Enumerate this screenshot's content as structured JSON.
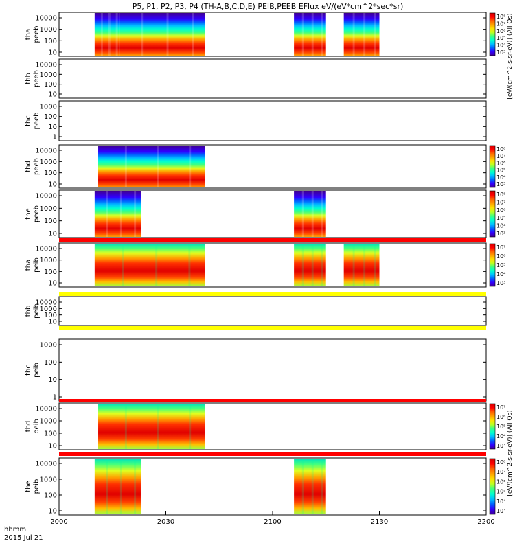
{
  "chart_data": {
    "type": "heatmap",
    "title": "P5, P1, P2, P3, P4 (TH-A,B,C,D,E) PEIB,PEEB EFlux eV/(eV*cm^2*sec*sr)",
    "x_axis": {
      "tick_labels": [
        "2000",
        "2030",
        "2100",
        "2130",
        "2200"
      ],
      "tick_minutes": [
        0,
        30,
        60,
        90,
        120
      ],
      "range_minutes": [
        0,
        120
      ],
      "corner_label_1": "hhmm",
      "corner_label_2": "2015 Jul 21"
    },
    "colorbar_label": "[eV/(cm^2-s-sr-eV)] (All Qs)",
    "panels": [
      {
        "probe": "tha",
        "instrument": "peeb",
        "ylabel": [
          "tha",
          "peeb"
        ],
        "yticks": [
          "10",
          "100",
          "1000",
          "10000"
        ],
        "has_data": true,
        "intervals_min": [
          [
            10,
            17
          ],
          [
            17,
            41
          ],
          [
            66,
            75
          ],
          [
            80,
            90
          ]
        ],
        "variant": "electron",
        "colorbar": true,
        "cbar_ticks": [
          "10⁸",
          "10⁷",
          "10⁶",
          "10⁵",
          "10⁴",
          "10³"
        ]
      },
      {
        "probe": "thb",
        "instrument": "peeb",
        "ylabel": [
          "thb",
          "peeb"
        ],
        "yticks": [
          "10",
          "100",
          "1000",
          "10000"
        ],
        "has_data": false,
        "intervals_min": [],
        "colorbar": false
      },
      {
        "probe": "thc",
        "instrument": "peeb",
        "ylabel": [
          "thc",
          "peeb"
        ],
        "yticks": [
          "1",
          "10",
          "100",
          "1000"
        ],
        "has_data": false,
        "intervals_min": [],
        "colorbar": false
      },
      {
        "probe": "thd",
        "instrument": "peeb",
        "ylabel": [
          "thd",
          "peeb"
        ],
        "yticks": [
          "10",
          "100",
          "1000",
          "10000"
        ],
        "has_data": true,
        "intervals_min": [
          [
            11,
            41
          ]
        ],
        "variant": "electron",
        "colorbar": true,
        "cbar_ticks": [
          "10⁸",
          "10⁷",
          "10⁶",
          "10⁵",
          "10⁴",
          "10³"
        ]
      },
      {
        "probe": "the",
        "instrument": "peeb",
        "ylabel": [
          "the",
          "peeb"
        ],
        "yticks": [
          "10",
          "100",
          "1000",
          "10000"
        ],
        "has_data": true,
        "intervals_min": [
          [
            10,
            23
          ],
          [
            66,
            75
          ]
        ],
        "variant": "electron",
        "colorbar": true,
        "cbar_ticks": [
          "10⁸",
          "10⁷",
          "10⁶",
          "10⁵",
          "10⁴",
          "10³"
        ]
      },
      {
        "probe": "tha",
        "instrument": "peib",
        "ylabel": [
          "tha",
          "peib"
        ],
        "yticks": [
          "10",
          "100",
          "1000",
          "10000"
        ],
        "has_data": true,
        "intervals_min": [
          [
            10,
            41
          ],
          [
            66,
            75
          ],
          [
            80,
            90
          ]
        ],
        "variant": "ion",
        "colorbar": true,
        "cbar_ticks": [
          "10⁷",
          "10⁶",
          "10⁵",
          "10⁴",
          "10³"
        ]
      },
      {
        "probe": "thb",
        "instrument": "peib",
        "ylabel": [
          "thb",
          "peib"
        ],
        "yticks": [
          "10",
          "100",
          "1000",
          "10000"
        ],
        "has_data": false,
        "intervals_min": [],
        "colorbar": false
      },
      {
        "probe": "thc",
        "instrument": "peib",
        "ylabel": [
          "thc",
          "peib"
        ],
        "yticks": [
          "1",
          "10",
          "100",
          "1000"
        ],
        "has_data": false,
        "intervals_min": [],
        "colorbar": false
      },
      {
        "probe": "thd",
        "instrument": "peib",
        "ylabel": [
          "thd",
          "peib"
        ],
        "yticks": [
          "10",
          "100",
          "1000",
          "10000"
        ],
        "has_data": true,
        "intervals_min": [
          [
            11,
            41
          ]
        ],
        "variant": "ion",
        "colorbar": true,
        "cbar_ticks": [
          "10⁷",
          "10⁶",
          "10⁵",
          "10⁴",
          "10³"
        ]
      },
      {
        "probe": "the",
        "instrument": "peib",
        "ylabel": [
          "the",
          "peib"
        ],
        "yticks": [
          "10",
          "100",
          "1000",
          "10000"
        ],
        "has_data": true,
        "intervals_min": [
          [
            10,
            23
          ],
          [
            66,
            75
          ]
        ],
        "variant": "ion",
        "colorbar": true,
        "cbar_ticks": [
          "10⁸",
          "10⁷",
          "10⁶",
          "10⁵",
          "10⁴",
          "10³"
        ]
      }
    ],
    "separators": [
      {
        "after_panel": 4,
        "color": "#ff0000"
      },
      {
        "after_panel": 5,
        "color": "#ffff00"
      },
      {
        "after_panel": 6,
        "color": "#ffff00"
      },
      {
        "after_panel": 7,
        "color": "#ff0000"
      },
      {
        "after_panel": 8,
        "color": "#ff0000"
      }
    ],
    "colormap": [
      "#d00000",
      "#ff0000",
      "#ff6000",
      "#ffa000",
      "#ffe000",
      "#c0ff20",
      "#40ff80",
      "#00ffd0",
      "#00c0ff",
      "#0060ff",
      "#3000ff",
      "#400090"
    ]
  }
}
